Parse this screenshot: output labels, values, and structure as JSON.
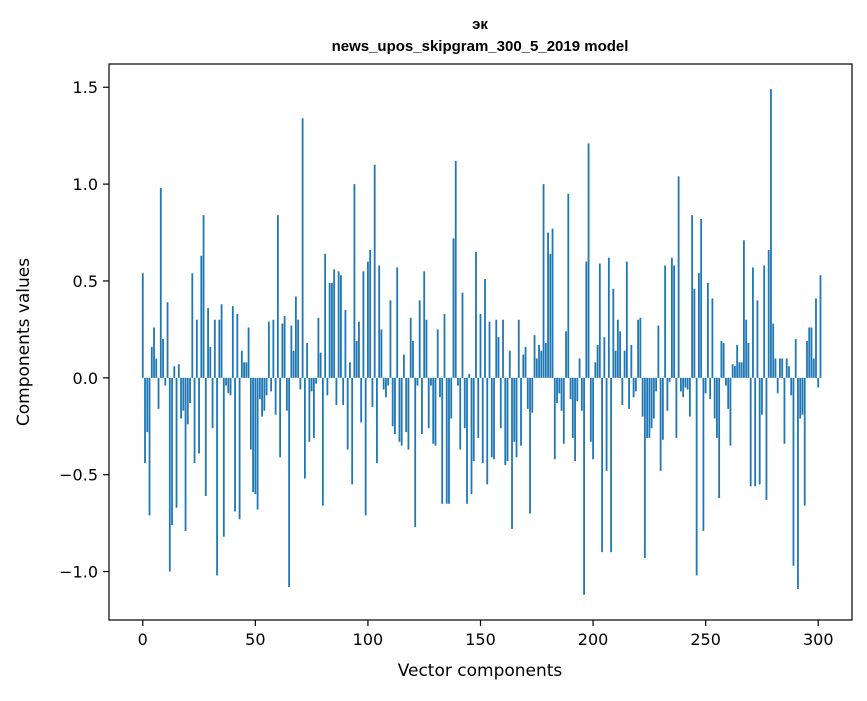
{
  "chart_data": {
    "type": "bar",
    "title_line1": "эк",
    "title_line2": "news_upos_skipgram_300_5_2019 model",
    "xlabel": "Vector components",
    "ylabel": "Components values",
    "xlim": [
      -15,
      315
    ],
    "ylim": [
      -1.25,
      1.62
    ],
    "xticks": [
      0,
      50,
      100,
      150,
      200,
      250,
      300
    ],
    "yticks": [
      -1.0,
      -0.5,
      0.0,
      0.5,
      1.0,
      1.5
    ],
    "xtick_labels": [
      "0",
      "50",
      "100",
      "150",
      "200",
      "250",
      "300"
    ],
    "ytick_labels": [
      "−1.0",
      "−0.5",
      "0.0",
      "0.5",
      "1.0",
      "1.5"
    ],
    "bar_color": "#1f77b4",
    "values": [
      0.54,
      -0.44,
      -0.28,
      -0.71,
      0.16,
      0.26,
      0.1,
      -0.16,
      0.98,
      0.2,
      -0.04,
      0.39,
      -1.0,
      -0.76,
      0.06,
      -0.67,
      0.07,
      -0.21,
      -0.17,
      -0.79,
      -0.24,
      -0.13,
      0.54,
      -0.44,
      0.3,
      -0.39,
      0.63,
      0.84,
      -0.61,
      0.36,
      0.16,
      -0.26,
      0.3,
      -1.02,
      0.3,
      0.38,
      -0.82,
      -0.04,
      -0.08,
      -0.09,
      0.37,
      -0.69,
      0.33,
      -0.73,
      0.14,
      0.08,
      0.08,
      0.26,
      -0.37,
      -0.59,
      -0.6,
      -0.68,
      -0.11,
      -0.2,
      -0.17,
      -0.09,
      0.29,
      -0.07,
      0.3,
      -0.19,
      0.84,
      -0.41,
      0.28,
      0.32,
      -0.17,
      -1.08,
      0.27,
      0.14,
      0.42,
      0.3,
      -0.06,
      1.34,
      -0.52,
      0.18,
      -0.33,
      -0.07,
      -0.31,
      -0.03,
      0.31,
      0.13,
      -0.66,
      0.64,
      -0.09,
      0.49,
      0.49,
      0.56,
      -0.14,
      0.55,
      0.53,
      -0.14,
      0.35,
      -0.37,
      0.08,
      -0.55,
      1.0,
      0.19,
      0.29,
      -0.23,
      0.55,
      -0.71,
      0.6,
      0.66,
      -0.15,
      1.1,
      -0.44,
      0.58,
      0.25,
      -0.06,
      -0.1,
      -0.04,
      0.4,
      -0.25,
      -0.29,
      0.57,
      -0.33,
      -0.35,
      0.12,
      -0.28,
      -0.37,
      0.31,
      0.19,
      -0.77,
      -0.04,
      0.4,
      -0.29,
      0.55,
      0.3,
      -0.26,
      -0.04,
      -0.34,
      -0.35,
      0.25,
      -0.1,
      -0.65,
      0.33,
      -0.65,
      -0.65,
      -0.21,
      0.72,
      1.12,
      -0.04,
      -0.37,
      0.44,
      -0.26,
      -0.65,
      0.02,
      -0.6,
      -0.43,
      0.65,
      -0.31,
      0.33,
      -0.44,
      0.51,
      -0.55,
      0.29,
      -0.41,
      -0.42,
      0.3,
      0.21,
      -0.26,
      0.3,
      -0.45,
      -0.43,
      0.14,
      -0.78,
      -0.33,
      -0.41,
      0.3,
      -0.35,
      0.12,
      0.16,
      -0.16,
      -0.7,
      -0.18,
      0.22,
      0.1,
      0.17,
      0.14,
      1.0,
      0.18,
      0.75,
      0.64,
      0.77,
      -0.42,
      -0.13,
      -0.08,
      -0.17,
      -0.34,
      0.24,
      0.95,
      -0.11,
      -0.31,
      -0.43,
      -0.12,
      0.1,
      -0.17,
      -1.12,
      0.6,
      1.21,
      -0.33,
      -0.42,
      0.08,
      0.17,
      0.59,
      -0.9,
      0.21,
      -0.48,
      0.62,
      -0.9,
      0.46,
      0.14,
      0.3,
      0.24,
      -0.14,
      0.14,
      0.6,
      -0.16,
      0.17,
      -0.1,
      -0.07,
      0.3,
      0.31,
      -0.2,
      -0.93,
      -0.31,
      -0.31,
      -0.26,
      -0.21,
      -0.07,
      0.27,
      -0.48,
      -0.32,
      0.58,
      -0.17,
      -0.02,
      0.62,
      0.58,
      -0.31,
      1.04,
      -0.07,
      -0.1,
      -0.05,
      -0.06,
      -0.2,
      0.84,
      0.46,
      -1.02,
      0.54,
      0.82,
      -0.79,
      -0.08,
      0.49,
      -0.11,
      0.41,
      -0.21,
      -0.31,
      -0.62,
      0.19,
      0.18,
      -0.04,
      -0.16,
      -0.35,
      0.07,
      0.06,
      0.17,
      0.08,
      0.08,
      0.71,
      0.3,
      0.18,
      -0.56,
      0.57,
      -0.56,
      0.4,
      -0.55,
      -0.19,
      0.58,
      -0.63,
      0.66,
      1.49,
      0.28,
      0.1,
      -0.08,
      0.1,
      0.1,
      -0.34,
      0.1,
      0.06,
      -0.09,
      -0.97,
      0.2,
      -1.09,
      -0.21,
      -0.19,
      -0.66,
      0.19,
      0.26,
      0.26,
      0.1,
      0.41,
      -0.05,
      0.53
    ]
  }
}
